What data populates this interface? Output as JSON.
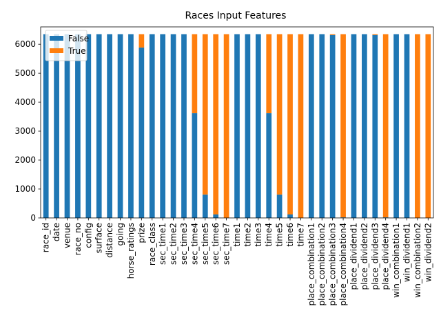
{
  "chart_data": {
    "type": "bar",
    "stacked": true,
    "title": "Races Input Features",
    "xlabel": "",
    "ylabel": "",
    "ylim": [
      0,
      6600
    ],
    "yticks": [
      0,
      1000,
      2000,
      3000,
      4000,
      5000,
      6000
    ],
    "legend_position": "top-left",
    "grid": false,
    "categories": [
      "race_id",
      "date",
      "venue",
      "race_no",
      "config",
      "surface",
      "distance",
      "going",
      "horse_ratings",
      "prize",
      "race_class",
      "sec_time1",
      "sec_time2",
      "sec_time3",
      "sec_time4",
      "sec_time5",
      "sec_time6",
      "sec_time7",
      "time1",
      "time2",
      "time3",
      "time4",
      "time5",
      "time6",
      "time7",
      "place_combination1",
      "place_combination2",
      "place_combination3",
      "place_combination4",
      "place_dividend1",
      "place_dividend2",
      "place_dividend3",
      "place_dividend4",
      "win_combination1",
      "win_dividend1",
      "win_combination2",
      "win_dividend2"
    ],
    "series": [
      {
        "name": "False",
        "color": "#1f77b4",
        "values": [
          6349,
          6349,
          6349,
          6349,
          6349,
          6349,
          6349,
          6349,
          6349,
          5887,
          6349,
          6349,
          6349,
          6349,
          3620,
          805,
          120,
          0,
          6349,
          6349,
          6349,
          3620,
          805,
          120,
          0,
          6349,
          6349,
          6320,
          20,
          6349,
          6349,
          6320,
          20,
          6349,
          6349,
          0,
          0
        ]
      },
      {
        "name": "True",
        "color": "#ff7f0e",
        "values": [
          0,
          0,
          0,
          0,
          0,
          0,
          0,
          0,
          0,
          462,
          0,
          0,
          0,
          0,
          2729,
          5544,
          6229,
          6349,
          0,
          0,
          0,
          2729,
          5544,
          6229,
          6349,
          0,
          0,
          29,
          6329,
          0,
          0,
          29,
          6329,
          0,
          0,
          6349,
          6349
        ]
      }
    ]
  }
}
